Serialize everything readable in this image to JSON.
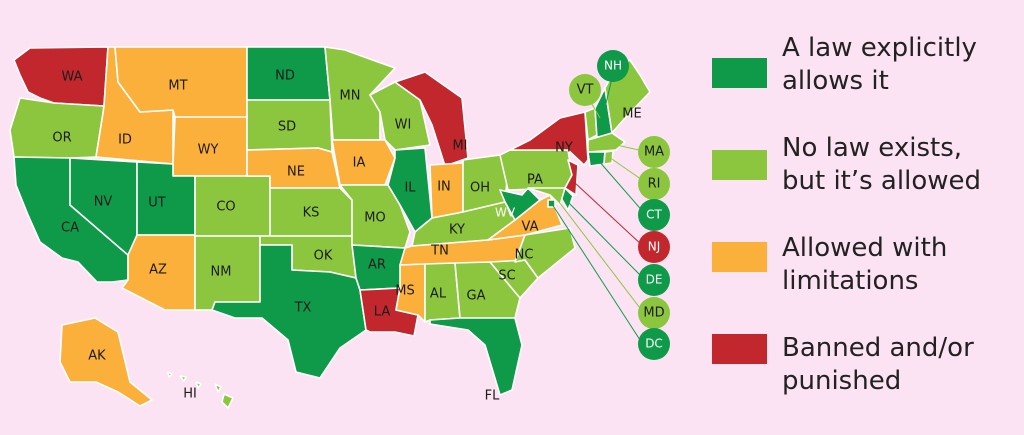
{
  "colors": {
    "allowed_by_law": "#0f9a49",
    "no_law_allowed": "#8cc63f",
    "limitations": "#fbb03b",
    "banned": "#c1272d"
  },
  "legend": [
    {
      "key": "allowed_by_law",
      "line1": "A law explicitly",
      "line2": "allows it"
    },
    {
      "key": "no_law_allowed",
      "line1": "No law exists,",
      "line2": "but it’s allowed"
    },
    {
      "key": "limitations",
      "line1": "Allowed with",
      "line2": "limitations"
    },
    {
      "key": "banned",
      "line1": "Banned and/or",
      "line2": "punished"
    }
  ],
  "states": {
    "WA": "banned",
    "OR": "no_law_allowed",
    "CA": "allowed_by_law",
    "ID": "limitations",
    "NV": "allowed_by_law",
    "MT": "limitations",
    "WY": "limitations",
    "UT": "allowed_by_law",
    "AZ": "limitations",
    "CO": "no_law_allowed",
    "NM": "no_law_allowed",
    "ND": "allowed_by_law",
    "SD": "no_law_allowed",
    "NE": "limitations",
    "KS": "no_law_allowed",
    "OK": "no_law_allowed",
    "TX": "allowed_by_law",
    "MN": "no_law_allowed",
    "IA": "limitations",
    "MO": "no_law_allowed",
    "AR": "allowed_by_law",
    "LA": "banned",
    "WI": "no_law_allowed",
    "IL": "allowed_by_law",
    "MI": "banned",
    "IN": "limitations",
    "OH": "no_law_allowed",
    "KY": "no_law_allowed",
    "TN": "limitations",
    "MS": "limitations",
    "AL": "no_law_allowed",
    "GA": "no_law_allowed",
    "FL": "allowed_by_law",
    "SC": "no_law_allowed",
    "NC": "no_law_allowed",
    "VA": "limitations",
    "WV": "allowed_by_law",
    "PA": "no_law_allowed",
    "NY": "banned",
    "VT": "no_law_allowed",
    "NH": "allowed_by_law",
    "ME": "no_law_allowed",
    "MA": "no_law_allowed",
    "RI": "no_law_allowed",
    "CT": "allowed_by_law",
    "NJ": "banned",
    "DE": "allowed_by_law",
    "MD": "no_law_allowed",
    "DC": "allowed_by_law",
    "AK": "limitations",
    "HI": "no_law_allowed"
  }
}
